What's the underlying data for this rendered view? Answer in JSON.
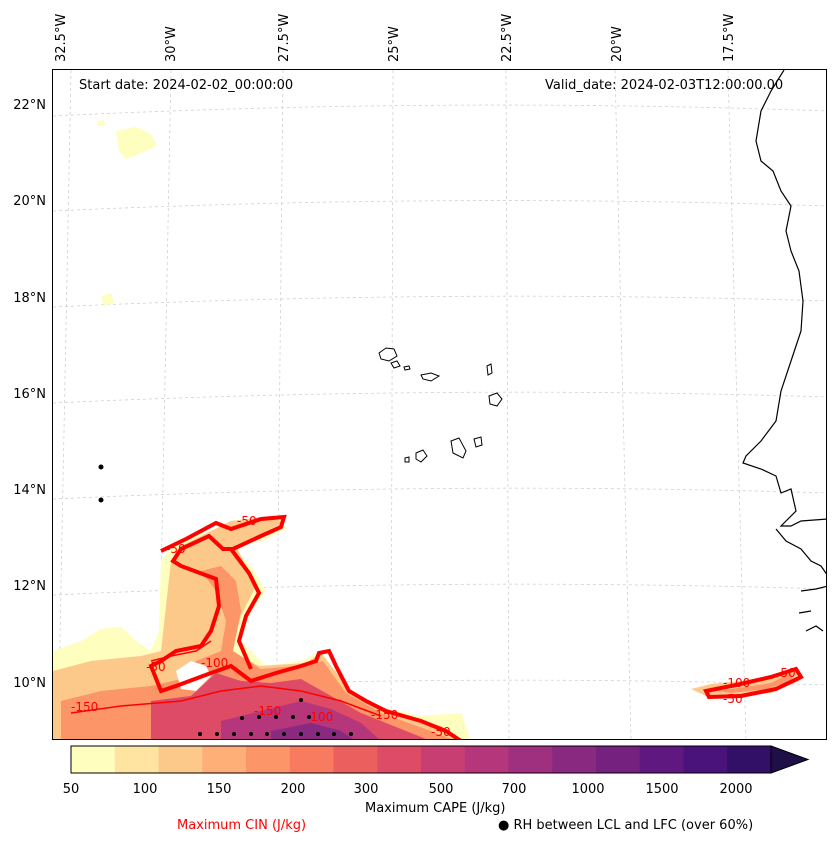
{
  "map": {
    "start_date": "Start date: 2024-02-02_00:00:00",
    "valid_date": "Valid_date: 2024-02-03T12:00:00.00",
    "lon_labels": [
      "32.5°W",
      "30°W",
      "27.5°W",
      "25°W",
      "22.5°W",
      "20°W",
      "17.5°W"
    ],
    "lat_labels": [
      "22°N",
      "20°N",
      "18°N",
      "16°N",
      "14°N",
      "12°N",
      "10°N"
    ],
    "contour_labels": [
      "-50",
      "-50",
      "-50",
      "-150",
      "-100",
      "-150",
      "-150",
      "-100",
      "-50",
      "-50",
      "-100",
      "-50"
    ]
  },
  "colorbar": {
    "label": "Maximum CAPE (J/kg)",
    "ticks": [
      "50",
      "100",
      "150",
      "200",
      "300",
      "500",
      "700",
      "1000",
      "1500",
      "2000"
    ],
    "colors": [
      "#fefebe",
      "#fee4a0",
      "#fdc98b",
      "#feae77",
      "#fc9568",
      "#f87a5f",
      "#ec5f5f",
      "#dd4b66",
      "#c83e73",
      "#b5367a",
      "#9f2f7f",
      "#8a2980",
      "#74217f",
      "#5f187f",
      "#4a127b",
      "#331068",
      "#1f0f47"
    ]
  },
  "legend": {
    "cin_label": "Maximum CIN (J/kg)",
    "rh_label": "RH between LCL and LFC (over 60%)",
    "rh_marker": "●"
  }
}
